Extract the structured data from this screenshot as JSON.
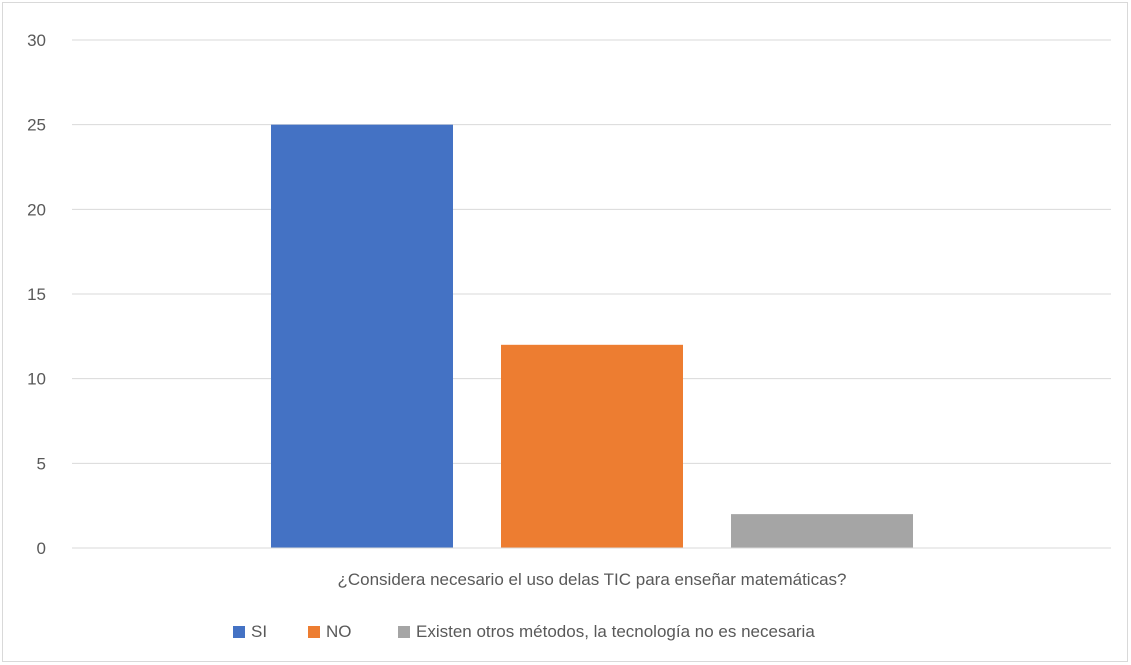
{
  "chart_data": {
    "type": "bar",
    "categories": [
      "¿Considera necesario el uso delas TIC para enseñar matemáticas?"
    ],
    "series": [
      {
        "name": "SI",
        "values": [
          25
        ],
        "color": "#4472C4"
      },
      {
        "name": "NO",
        "values": [
          12
        ],
        "color": "#ED7D31"
      },
      {
        "name": "Existen otros métodos, la tecnología no es necesaria",
        "values": [
          2
        ],
        "color": "#A5A5A5"
      }
    ],
    "ylim": [
      0,
      30
    ],
    "yticks": [
      0,
      5,
      10,
      15,
      20,
      25,
      30
    ],
    "grid": true,
    "legend_position": "bottom",
    "title": "",
    "xlabel": "",
    "ylabel": ""
  }
}
